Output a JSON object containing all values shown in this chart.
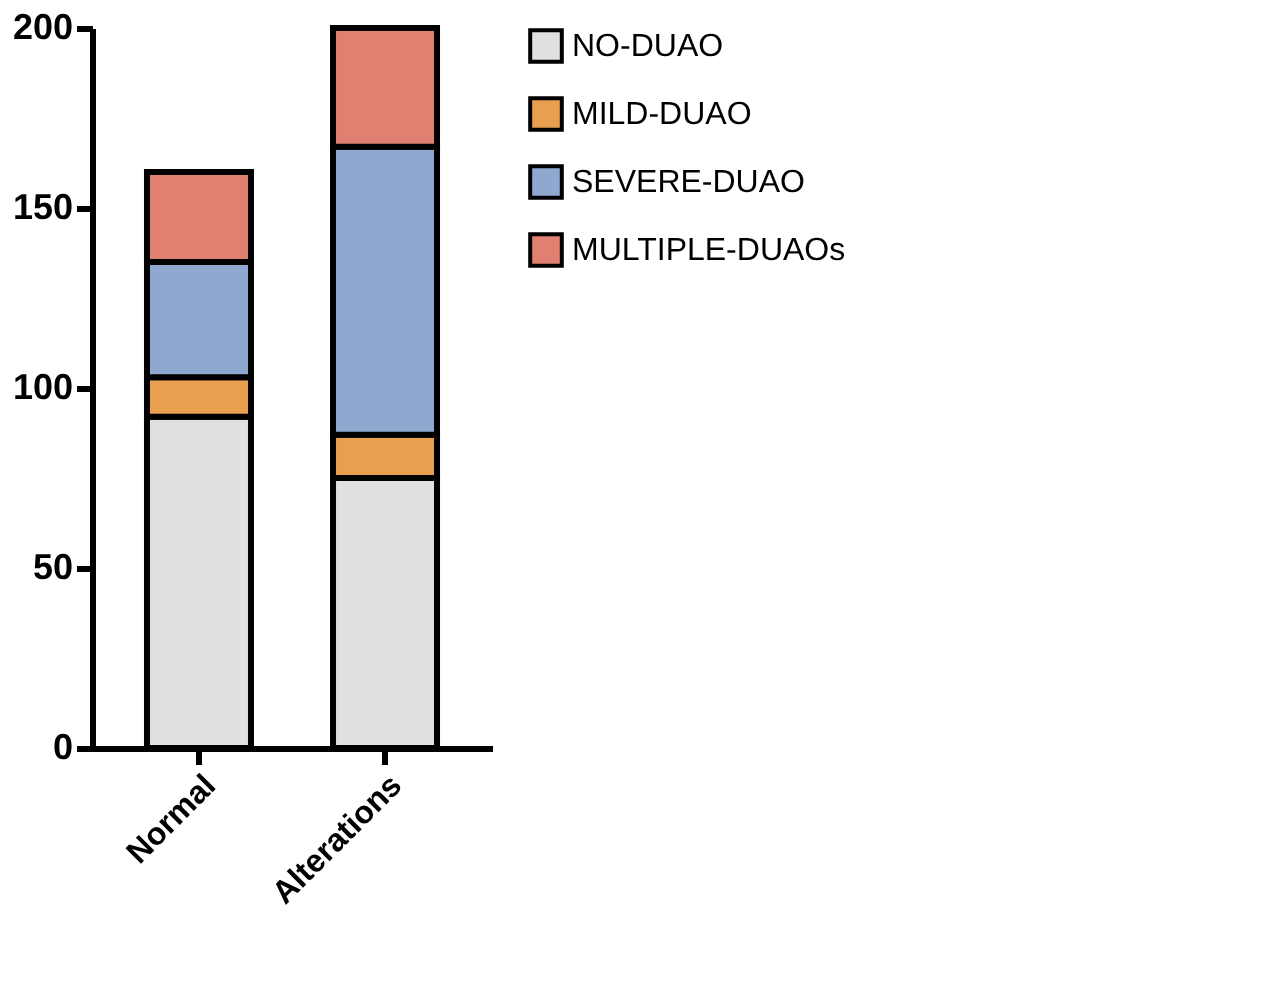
{
  "chart_data": {
    "type": "bar",
    "stacked": true,
    "categories": [
      "Normal",
      "Alterations"
    ],
    "series": [
      {
        "name": "NO-DUAO",
        "color": "#e0e0e0",
        "values": [
          92,
          75
        ]
      },
      {
        "name": "MILD-DUAO",
        "color": "#e8a050",
        "values": [
          11,
          12
        ]
      },
      {
        "name": "SEVERE-DUAO",
        "color": "#8fa8d0",
        "values": [
          32,
          80
        ]
      },
      {
        "name": "MULTIPLE-DUAOs",
        "color": "#e08070",
        "values": [
          25,
          33
        ]
      }
    ],
    "ylim": [
      0,
      200
    ],
    "yticks": [
      0,
      50,
      100,
      150,
      200
    ],
    "grid": false,
    "legend": "top right"
  }
}
